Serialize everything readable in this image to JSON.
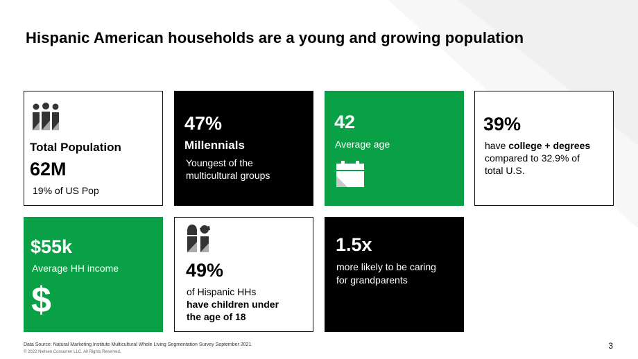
{
  "title": "Hispanic American households are a young and growing population",
  "tiles": {
    "total_population": {
      "label": "Total Population",
      "value": "62M",
      "note": "19% of US Pop",
      "icon": "people-icon"
    },
    "millennials": {
      "value": "47%",
      "label": "Millennials",
      "note_line1": "Youngest of the",
      "note_line2": "multicultural groups"
    },
    "average_age": {
      "value": "42",
      "label": "Average age",
      "icon": "calendar-icon"
    },
    "college": {
      "value": "39%",
      "line1_prefix": "have ",
      "line1_bold": "college + degrees",
      "line2": "compared to 32.9% of",
      "line3": "total U.S."
    },
    "income": {
      "value": "$55k",
      "label": "Average HH income",
      "symbol": "$",
      "icon": "dollar-icon"
    },
    "children": {
      "value": "49%",
      "line1": "of Hispanic HHs",
      "line2": "have children under",
      "line3": "the age of 18",
      "icon": "parent-child-icon"
    },
    "grandparents": {
      "value": "1.5x",
      "line1": "more likely to be caring",
      "line2": "for grandparents"
    }
  },
  "footer": {
    "source": "Data Source: Natural Marketing Institute Multicultural Whole Living Segmentation Survey September 2021",
    "copyright": "© 2022 Nielsen Consumer LLC. All Rights Reserved."
  },
  "page_number": "3",
  "colors": {
    "green": "#0aa046",
    "black": "#000000",
    "white": "#ffffff"
  }
}
